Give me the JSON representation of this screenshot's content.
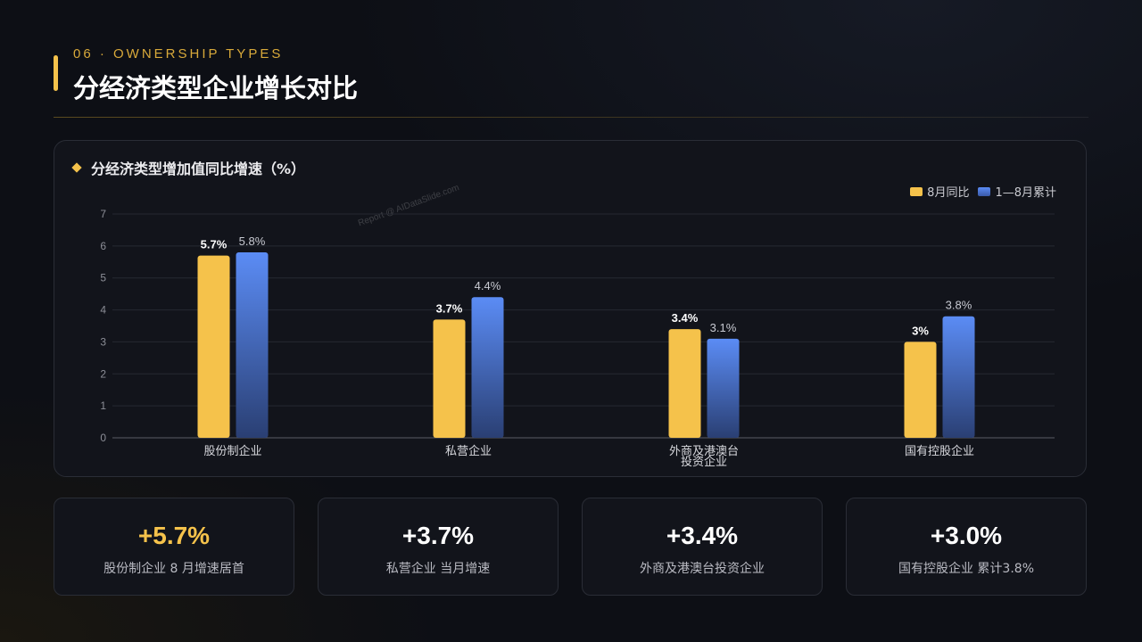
{
  "header": {
    "eyebrow": "06 · OWNERSHIP TYPES",
    "title": "分经济类型企业增长对比"
  },
  "panel": {
    "title": "分经济类型增加值同比增速（%）",
    "watermark": "Report @ AIDataSlide.com"
  },
  "colors": {
    "accent": "#f5c24b",
    "series_monthly": "#f5c24b",
    "series_cumulative_top": "#5b8cf5",
    "series_cumulative_bottom": "#2a3f73"
  },
  "chart_data": {
    "type": "bar",
    "categories": [
      "股份制企业",
      "私营企业",
      "外商及港澳台投资企业",
      "国有控股企业"
    ],
    "category_lines": [
      [
        "股份制企业"
      ],
      [
        "私营企业"
      ],
      [
        "外商及港澳台",
        "投资企业"
      ],
      [
        "国有控股企业"
      ]
    ],
    "series": [
      {
        "name": "8月同比",
        "values": [
          5.7,
          3.7,
          3.4,
          3.0
        ],
        "labels": [
          "5.7%",
          "3.7%",
          "3.4%",
          "3%"
        ]
      },
      {
        "name": "1—8月累计",
        "values": [
          5.8,
          4.4,
          3.1,
          3.8
        ],
        "labels": [
          "5.8%",
          "4.4%",
          "3.1%",
          "3.8%"
        ]
      }
    ],
    "ylim": [
      0,
      7
    ],
    "yticks": [
      "0",
      "1",
      "2",
      "3",
      "4",
      "5",
      "6",
      "7"
    ],
    "grid": true,
    "legend": "top-right"
  },
  "kpis": [
    {
      "value": "+5.7%",
      "label": "股份制企业 8 月增速居首"
    },
    {
      "value": "+3.7%",
      "label": "私营企业 当月增速"
    },
    {
      "value": "+3.4%",
      "label": "外商及港澳台投资企业"
    },
    {
      "value": "+3.0%",
      "label": "国有控股企业 累计3.8%"
    }
  ]
}
